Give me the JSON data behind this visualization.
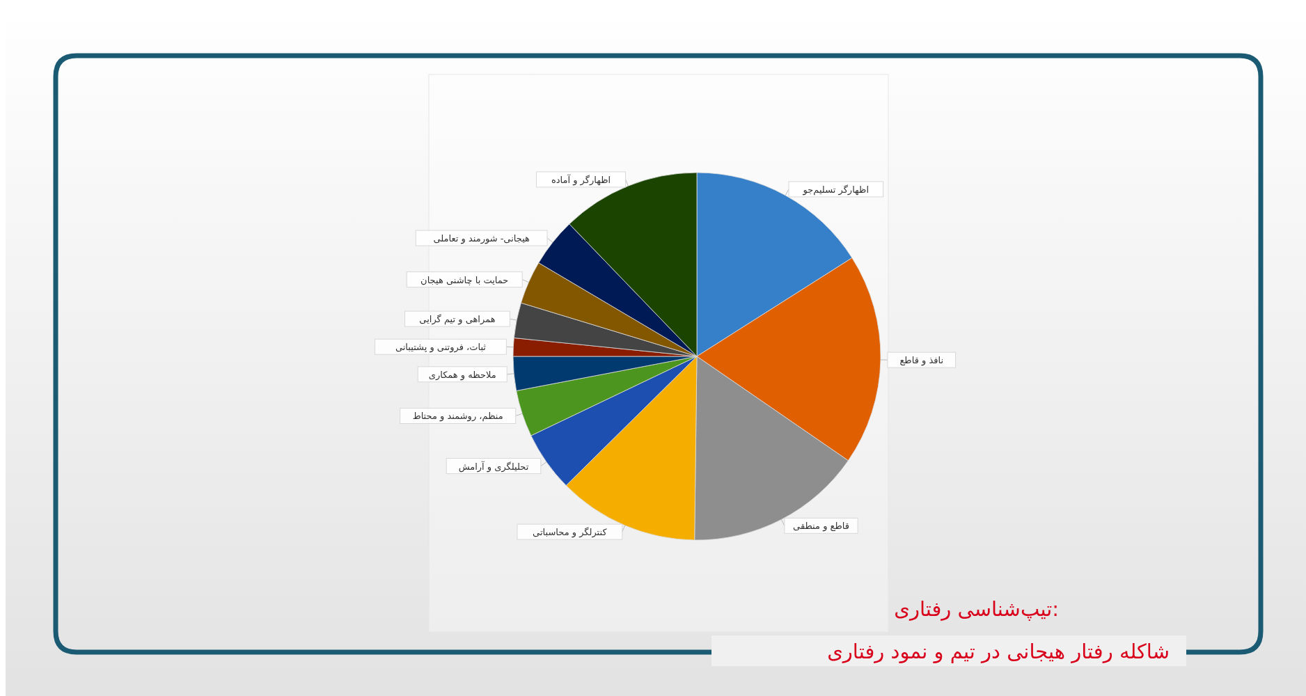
{
  "chart_data": {
    "type": "pie",
    "title": "تیپ‌شناسی رفتاری:",
    "subtitle": "شاکله رفتار هیجانی در تیم و نمود رفتاری",
    "categories": [
      "اظهارگر تسلیم‌جو",
      "نافذ و قاطع",
      "قاطع و منطقی",
      "کنترلگر و محاسباتی",
      "تحلیلگری و آرامش",
      "منظم، روشمند و محتاط",
      "ملاحظه و همکاری",
      "ثبات، فروتنی و پشتیبانی",
      "همراهی و تیم گرایی",
      "حمایت با چاشنی هیجان",
      "هیجانی- شورمند و تعاملی",
      "اظهارگر و آماده"
    ],
    "values": [
      16.0,
      18.6,
      15.6,
      12.4,
      5.3,
      4.1,
      3.0,
      1.6,
      3.1,
      3.8,
      4.3,
      12.2
    ],
    "colors": [
      "#3580c8",
      "#e05f00",
      "#8e8e8e",
      "#f5ae00",
      "#1c4fb0",
      "#4c9620",
      "#003a6e",
      "#8a1c00",
      "#444444",
      "#825700",
      "#001a55",
      "#1a4400"
    ]
  }
}
